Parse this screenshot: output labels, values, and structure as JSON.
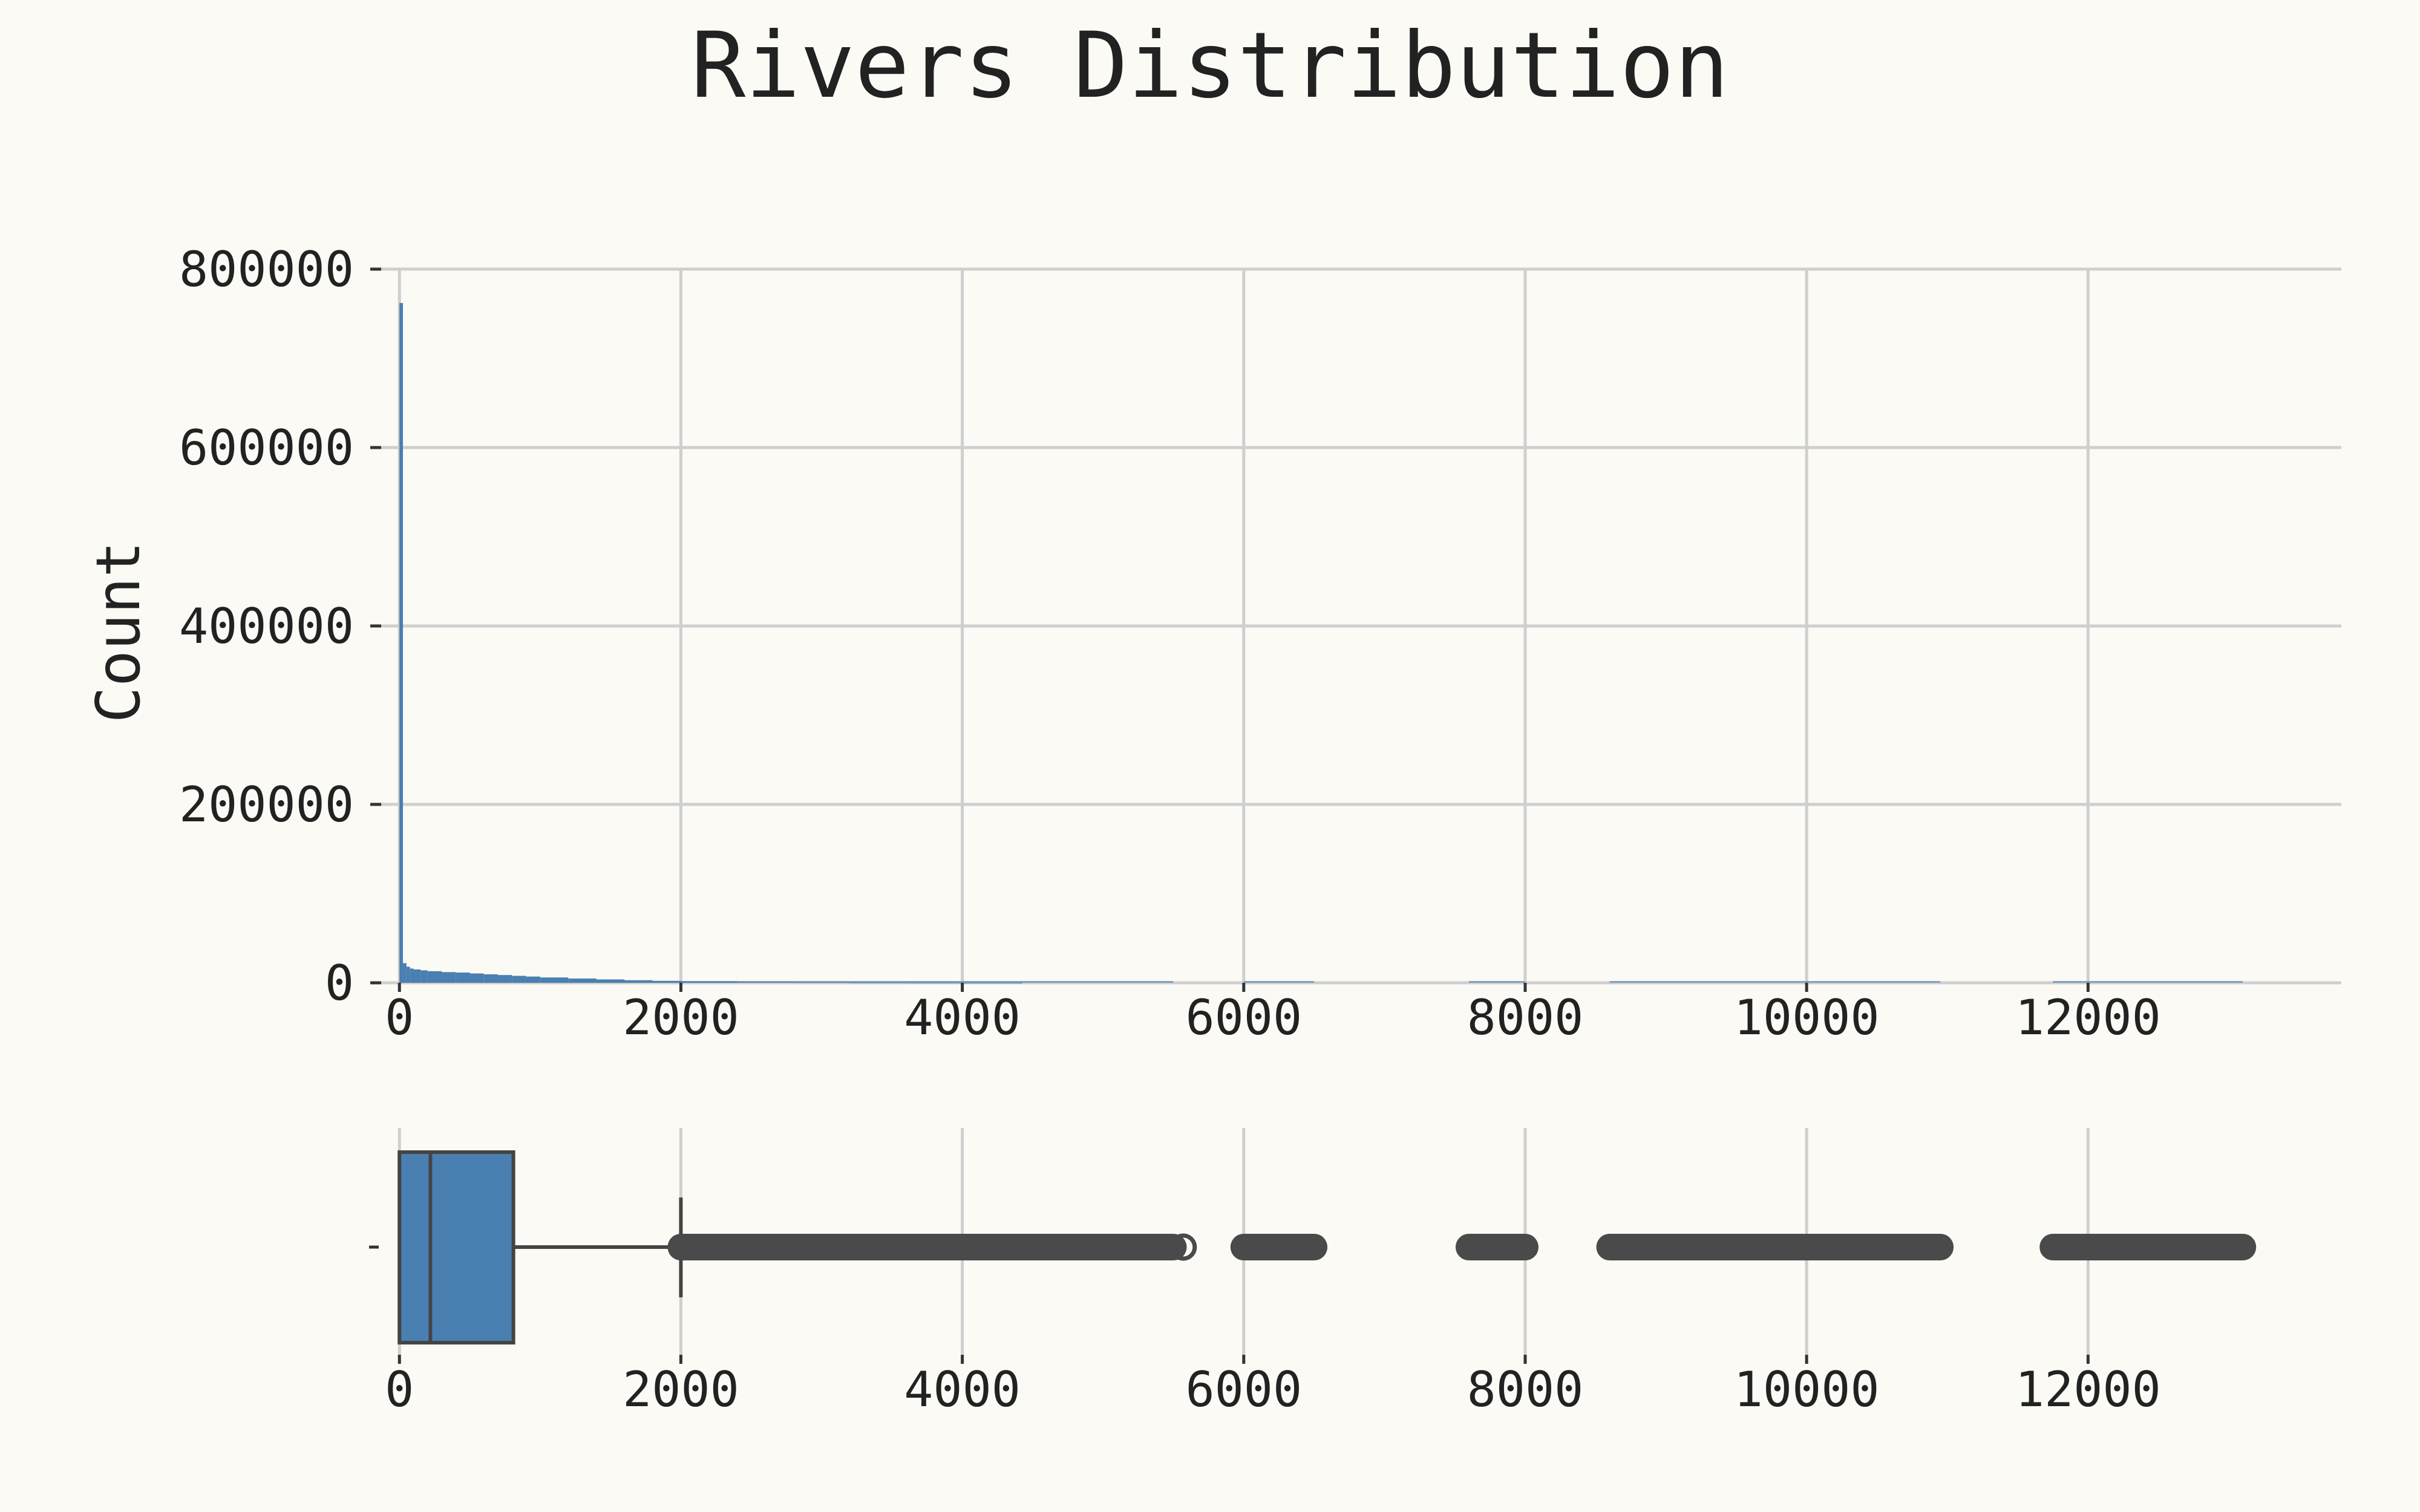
{
  "chart_data": [
    {
      "type": "histogram",
      "title": "Rivers Distribution",
      "xlabel": "",
      "ylabel": "Count",
      "xlim": [
        -130,
        13800
      ],
      "ylim": [
        0,
        800000
      ],
      "xticks": [
        0,
        2000,
        4000,
        6000,
        8000,
        10000,
        12000
      ],
      "yticks": [
        0,
        200000,
        400000,
        600000,
        800000
      ],
      "grid": true,
      "bin_width": 25,
      "bins_x": [
        0,
        25,
        50,
        75,
        100,
        150,
        200,
        300,
        400,
        500,
        600,
        700,
        800,
        900,
        1000,
        1200,
        1400,
        1600,
        1800,
        2000,
        2400,
        2800,
        3200,
        3600,
        4000,
        4400
      ],
      "bins_count": [
        762000,
        22000,
        18000,
        16000,
        15000,
        14000,
        13000,
        12000,
        11500,
        10500,
        9500,
        8700,
        7800,
        7000,
        6000,
        4800,
        3800,
        2900,
        2200,
        1600,
        900,
        600,
        400,
        300,
        150,
        80
      ],
      "color": "#4a7fb1"
    },
    {
      "type": "box",
      "xlim": [
        -130,
        13800
      ],
      "xticks": [
        0,
        2000,
        4000,
        6000,
        8000,
        10000,
        12000
      ],
      "ytick_labels": [
        ""
      ],
      "grid": true,
      "min": 0,
      "q1": 0,
      "median": 220,
      "q3": 810,
      "whisker_high": 2000,
      "outlier_ranges": [
        [
          2000,
          5500
        ],
        [
          6000,
          6500
        ],
        [
          7600,
          8000
        ],
        [
          8600,
          10950
        ],
        [
          11750,
          13100
        ]
      ],
      "outlier_points": [
        5570
      ],
      "box_color": "#4a7fb1",
      "line_color": "#444444",
      "outlier_color": "#4a4a4a"
    }
  ]
}
